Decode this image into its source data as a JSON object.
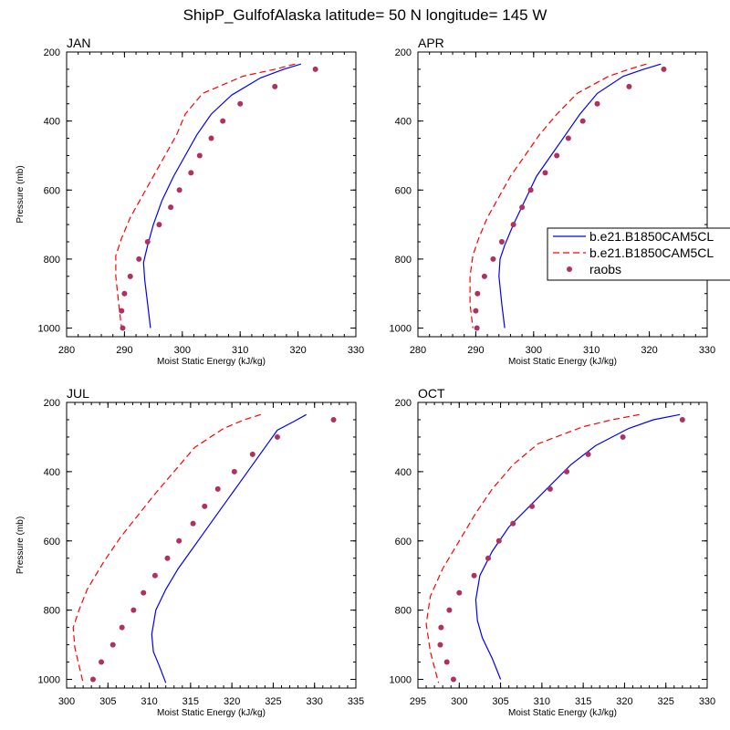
{
  "title": "ShipP_GulfofAlaska  latitude= 50 N longitude= 145 W",
  "legend": {
    "entries": [
      {
        "label": "b.e21.B1850CAM5CL",
        "color": "#0000ff",
        "style": "solid"
      },
      {
        "label": "b.e21.B1850CAM5CL",
        "color": "#ff0000",
        "style": "dashed"
      },
      {
        "label": "raobs",
        "color": "#b03060",
        "style": "marker"
      }
    ]
  },
  "chart_data": [
    {
      "type": "line",
      "title": "JAN",
      "xlabel": "Moist Static Energy (kJ/kg)",
      "ylabel": "Pressure (mb)",
      "xlim": [
        280,
        330
      ],
      "ylim": [
        1025,
        200
      ],
      "xticks": [
        280,
        290,
        300,
        310,
        320,
        330
      ],
      "yticks": [
        200,
        400,
        600,
        800,
        1000
      ],
      "series": [
        {
          "name": "b.e21.B1850CAM5CL",
          "style": "solid",
          "color": "#0000ff",
          "x": [
            320.5,
            317.5,
            313.5,
            308.5,
            305.0,
            302.5,
            300.5,
            298.5,
            296.5,
            295.0,
            294.0,
            293.3,
            293.5,
            294.0,
            294.5
          ],
          "y": [
            235,
            250,
            275,
            325,
            380,
            440,
            500,
            560,
            630,
            700,
            760,
            810,
            860,
            930,
            1000
          ]
        },
        {
          "name": "b.e21.B1850CAM5CL",
          "style": "dashed",
          "color": "#ff0000",
          "x": [
            319.5,
            316.0,
            310.5,
            303.5,
            300.5,
            299.0,
            297.0,
            295.0,
            293.0,
            291.0,
            289.5,
            288.5,
            288.5,
            289.0,
            289.5
          ],
          "y": [
            235,
            250,
            270,
            320,
            380,
            440,
            500,
            560,
            620,
            680,
            740,
            790,
            850,
            930,
            1000
          ]
        },
        {
          "name": "raobs",
          "style": "marker",
          "color": "#b03060",
          "x": [
            323.0,
            316.0,
            310.0,
            307.0,
            305.0,
            303.0,
            301.5,
            299.5,
            298.0,
            296.0,
            294.0,
            292.5,
            291.0,
            290.0,
            289.5,
            289.7
          ],
          "y": [
            250,
            300,
            350,
            400,
            450,
            500,
            550,
            600,
            650,
            700,
            750,
            800,
            850,
            900,
            950,
            1000
          ]
        }
      ]
    },
    {
      "type": "line",
      "title": "APR",
      "xlabel": "Moist Static Energy (kJ/kg)",
      "ylabel": "",
      "xlim": [
        280,
        330
      ],
      "ylim": [
        1025,
        200
      ],
      "xticks": [
        280,
        290,
        300,
        310,
        320,
        330
      ],
      "yticks": [
        200,
        400,
        600,
        800,
        1000
      ],
      "series": [
        {
          "name": "b.e21.B1850CAM5CL",
          "style": "solid",
          "color": "#0000ff",
          "x": [
            322.0,
            319.0,
            315.5,
            311.0,
            308.0,
            305.5,
            303.0,
            300.5,
            298.5,
            296.5,
            295.0,
            294.2,
            294.0,
            294.5,
            295.0
          ],
          "y": [
            235,
            250,
            270,
            320,
            380,
            440,
            500,
            560,
            630,
            700,
            760,
            800,
            850,
            930,
            1000
          ]
        },
        {
          "name": "b.e21.B1850CAM5CL",
          "style": "dashed",
          "color": "#ff0000",
          "x": [
            319.5,
            316.5,
            313.0,
            307.5,
            304.0,
            301.0,
            298.5,
            296.0,
            294.0,
            292.0,
            290.5,
            289.5,
            289.0,
            289.0,
            289.5
          ],
          "y": [
            235,
            250,
            270,
            320,
            380,
            440,
            500,
            560,
            620,
            680,
            740,
            790,
            850,
            930,
            1000
          ]
        },
        {
          "name": "raobs",
          "style": "marker",
          "color": "#b03060",
          "x": [
            322.5,
            316.5,
            311.0,
            308.5,
            306.0,
            304.0,
            302.0,
            299.5,
            298.0,
            296.5,
            294.5,
            293.0,
            291.5,
            290.3,
            290.0,
            290.2
          ],
          "y": [
            250,
            300,
            350,
            400,
            450,
            500,
            550,
            600,
            650,
            700,
            750,
            800,
            850,
            900,
            950,
            1000
          ]
        }
      ]
    },
    {
      "type": "line",
      "title": "JUL",
      "xlabel": "Moist Static Energy (kJ/kg)",
      "ylabel": "Pressure (mb)",
      "xlim": [
        300,
        335
      ],
      "ylim": [
        1025,
        200
      ],
      "xticks": [
        300,
        305,
        310,
        315,
        320,
        325,
        330,
        335
      ],
      "yticks": [
        200,
        400,
        600,
        800,
        1000
      ],
      "series": [
        {
          "name": "b.e21.B1850CAM5CL",
          "style": "solid",
          "color": "#0000ff",
          "x": [
            329.0,
            327.5,
            325.5,
            324.0,
            322.5,
            321.0,
            319.5,
            318.0,
            316.5,
            315.0,
            313.5,
            312.0,
            310.8,
            310.3,
            310.5,
            311.2,
            312.0
          ],
          "y": [
            235,
            255,
            280,
            330,
            380,
            430,
            480,
            530,
            580,
            630,
            680,
            740,
            800,
            870,
            920,
            960,
            1010
          ]
        },
        {
          "name": "b.e21.B1850CAM5CL",
          "style": "dashed",
          "color": "#ff0000",
          "x": [
            323.5,
            321.5,
            319.0,
            315.5,
            313.0,
            310.5,
            308.5,
            306.5,
            304.5,
            302.5,
            301.5,
            300.8,
            301.0,
            301.5,
            302.0
          ],
          "y": [
            235,
            250,
            275,
            330,
            400,
            470,
            530,
            590,
            660,
            740,
            800,
            850,
            910,
            960,
            1010
          ]
        },
        {
          "name": "raobs",
          "style": "marker",
          "color": "#b03060",
          "x": [
            332.3,
            325.5,
            322.5,
            320.3,
            318.3,
            316.7,
            315.3,
            313.6,
            312.2,
            310.7,
            309.3,
            308.1,
            306.7,
            305.6,
            304.2,
            303.2
          ],
          "y": [
            250,
            300,
            350,
            400,
            450,
            500,
            550,
            600,
            650,
            700,
            750,
            800,
            850,
            900,
            950,
            1000
          ]
        }
      ]
    },
    {
      "type": "line",
      "title": "OCT",
      "xlabel": "Moist Static Energy (kJ/kg)",
      "ylabel": "",
      "xlim": [
        295,
        330
      ],
      "ylim": [
        1025,
        200
      ],
      "xticks": [
        295,
        300,
        305,
        310,
        315,
        320,
        325,
        330
      ],
      "yticks": [
        200,
        400,
        600,
        800,
        1000
      ],
      "series": [
        {
          "name": "b.e21.B1850CAM5CL",
          "style": "solid",
          "color": "#0000ff",
          "x": [
            326.7,
            323.5,
            320.5,
            316.5,
            313.5,
            311.0,
            308.5,
            306.0,
            304.0,
            302.5,
            302.0,
            302.2,
            302.8,
            304.0,
            305.0
          ],
          "y": [
            235,
            250,
            275,
            325,
            380,
            440,
            500,
            560,
            630,
            700,
            770,
            830,
            880,
            940,
            1000
          ]
        },
        {
          "name": "b.e21.B1850CAM5CL",
          "style": "dashed",
          "color": "#ff0000",
          "x": [
            321.8,
            318.5,
            315.0,
            309.5,
            306.5,
            304.0,
            302.0,
            300.0,
            298.0,
            296.5,
            296.0,
            296.5,
            297.5
          ],
          "y": [
            235,
            250,
            270,
            320,
            380,
            450,
            520,
            600,
            680,
            760,
            840,
            920,
            1010
          ]
        },
        {
          "name": "raobs",
          "style": "marker",
          "color": "#b03060",
          "x": [
            327.0,
            319.8,
            315.6,
            313.0,
            311.0,
            308.8,
            306.5,
            304.8,
            303.5,
            301.8,
            300.0,
            298.8,
            297.8,
            297.7,
            298.5,
            299.3
          ],
          "y": [
            250,
            300,
            350,
            400,
            450,
            500,
            550,
            600,
            650,
            700,
            750,
            800,
            850,
            900,
            950,
            1000
          ]
        }
      ]
    }
  ]
}
